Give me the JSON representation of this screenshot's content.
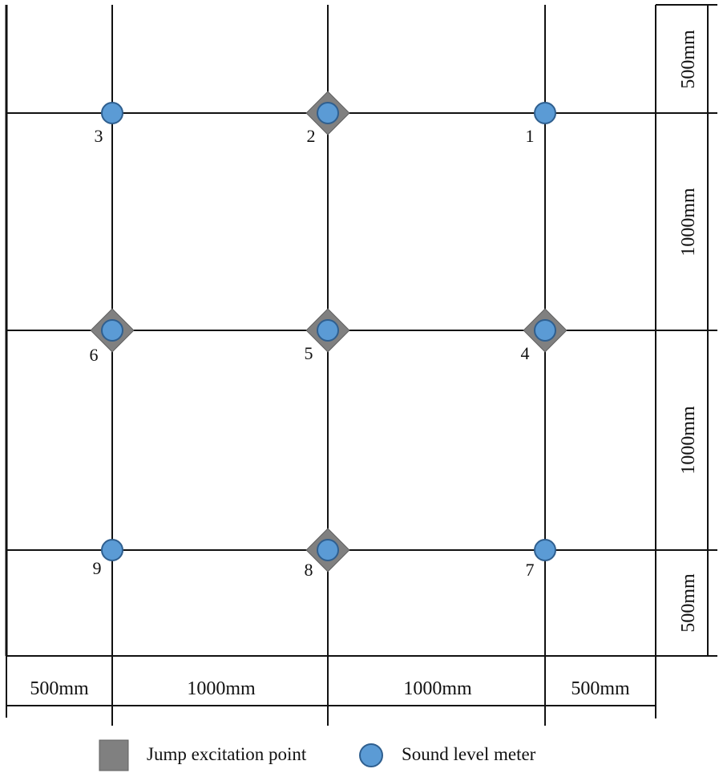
{
  "colors": {
    "line": "#111111",
    "sensor_fill": "#5b9bd5",
    "sensor_stroke": "#2f5f8f",
    "excitation_fill": "#808080",
    "excitation_stroke": "#606060"
  },
  "points": [
    {
      "id": "1",
      "label": "1",
      "sensor": true,
      "excitation": false
    },
    {
      "id": "2",
      "label": "2",
      "sensor": true,
      "excitation": true
    },
    {
      "id": "3",
      "label": "3",
      "sensor": true,
      "excitation": false
    },
    {
      "id": "4",
      "label": "4",
      "sensor": true,
      "excitation": true
    },
    {
      "id": "5",
      "label": "5",
      "sensor": true,
      "excitation": true
    },
    {
      "id": "6",
      "label": "6",
      "sensor": true,
      "excitation": true
    },
    {
      "id": "7",
      "label": "7",
      "sensor": true,
      "excitation": false
    },
    {
      "id": "8",
      "label": "8",
      "sensor": true,
      "excitation": true
    },
    {
      "id": "9",
      "label": "9",
      "sensor": true,
      "excitation": false
    }
  ],
  "dimensions": {
    "horizontal": [
      "500mm",
      "1000mm",
      "1000mm",
      "500mm"
    ],
    "vertical": [
      "500mm",
      "1000mm",
      "1000mm",
      "500mm"
    ]
  },
  "legend": {
    "excitation_label": "Jump excitation point",
    "sensor_label": "Sound level meter",
    "excitation_icon": "gray-square-icon",
    "sensor_icon": "blue-circle-icon"
  }
}
